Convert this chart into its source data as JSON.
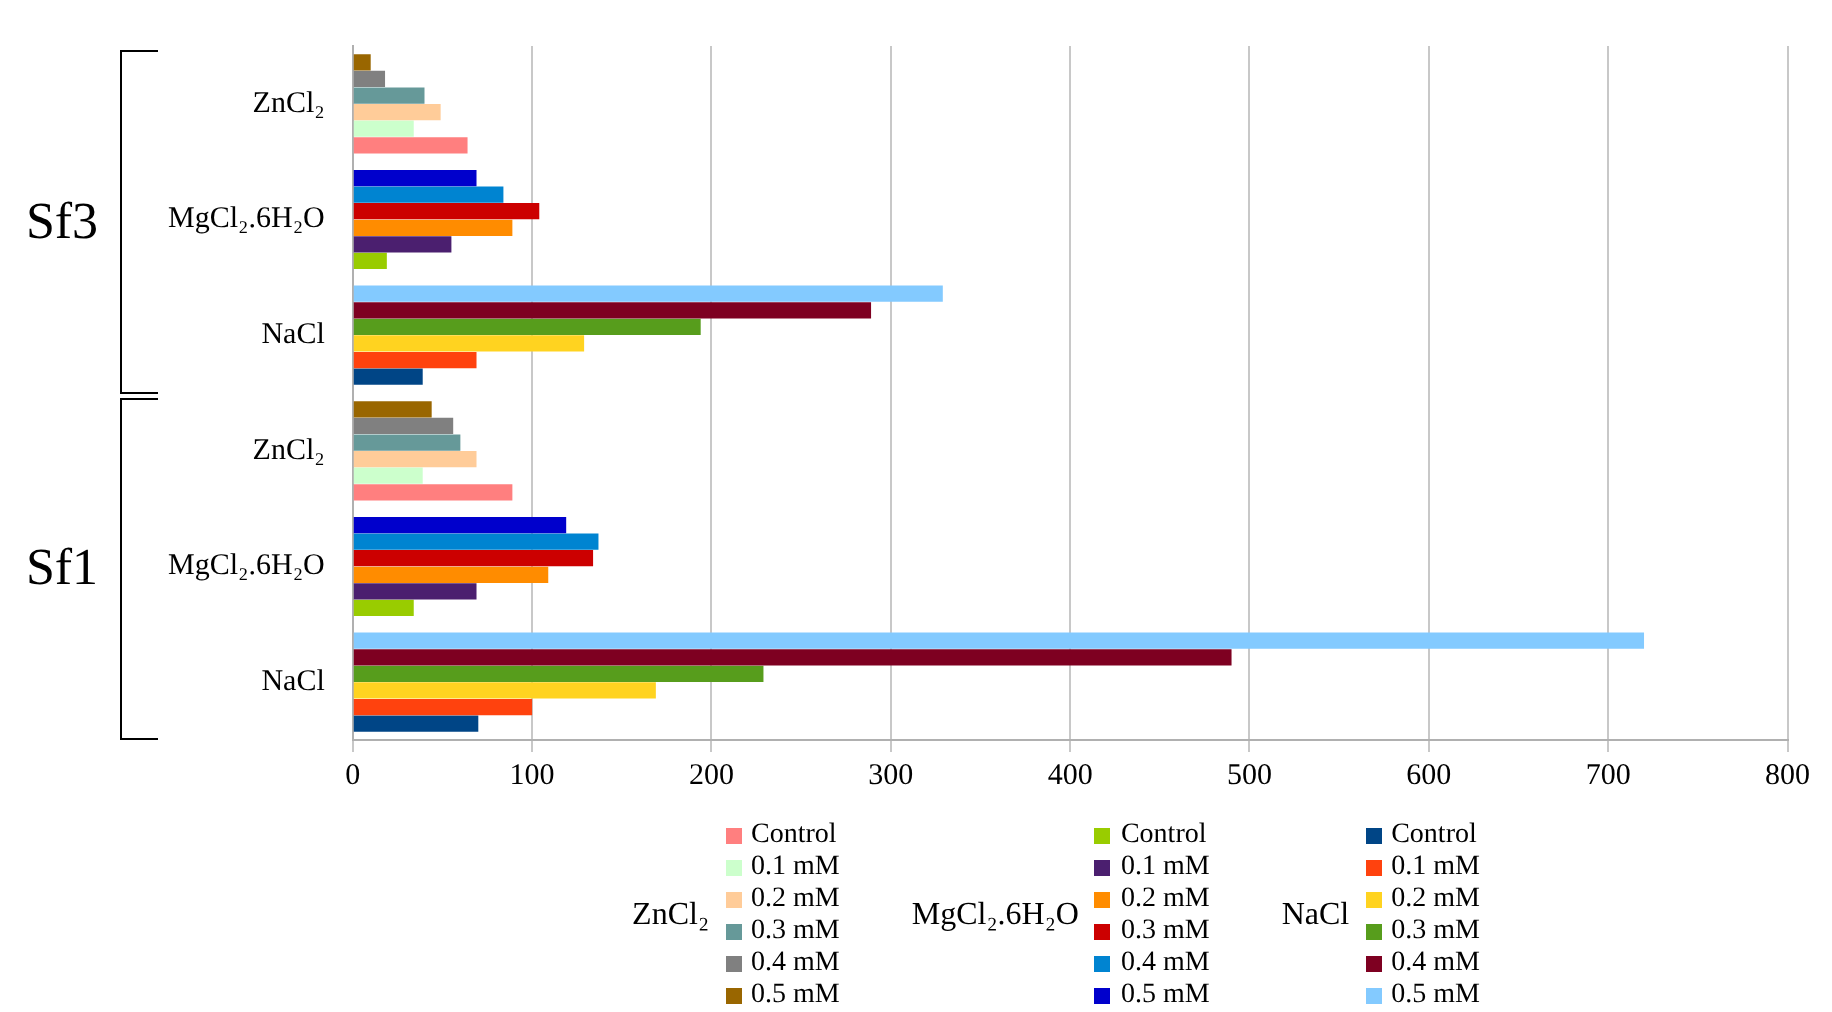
{
  "chart_data": {
    "type": "bar",
    "orientation": "horizontal",
    "categories": [
      "ZnCl₂",
      "MgCl₂.6H₂O",
      "NaCl",
      "ZnCl₂",
      "MgCl₂.6H₂O",
      "NaCl"
    ],
    "series": [
      {
        "name": "Control",
        "color": "#ff7f7f",
        "values": [
          64,
          null,
          null,
          89,
          null,
          null
        ]
      },
      {
        "name": "0.1 mM",
        "color": "#ccffcc",
        "values": [
          34,
          null,
          null,
          39,
          null,
          null
        ]
      },
      {
        "name": "0.2 mM",
        "color": "#ffcc99",
        "values": [
          49,
          null,
          null,
          69,
          null,
          null
        ]
      },
      {
        "name": "0.3 mM",
        "color": "#669999",
        "values": [
          40,
          null,
          null,
          60,
          null,
          null
        ]
      },
      {
        "name": "0.4 mM",
        "color": "#808080",
        "values": [
          18,
          null,
          null,
          56,
          null,
          null
        ]
      },
      {
        "name": "0.5 mM",
        "color": "#996600",
        "values": [
          10,
          null,
          null,
          44,
          null,
          null
        ]
      },
      {
        "name": "Control",
        "color": "#99cc00",
        "values": [
          null,
          19,
          null,
          null,
          34,
          null
        ]
      },
      {
        "name": "0.1 mM",
        "color": "#4b1f6f",
        "values": [
          null,
          55,
          null,
          null,
          69,
          null
        ]
      },
      {
        "name": "0.2 mM",
        "color": "#ff8c00",
        "values": [
          null,
          89,
          null,
          null,
          109,
          null
        ]
      },
      {
        "name": "0.3 mM",
        "color": "#cc0000",
        "values": [
          null,
          104,
          null,
          null,
          134,
          null
        ]
      },
      {
        "name": "0.4 mM",
        "color": "#0084d1",
        "values": [
          null,
          84,
          null,
          null,
          137,
          null
        ]
      },
      {
        "name": "0.5 mM",
        "color": "#0000cc",
        "values": [
          null,
          69,
          null,
          null,
          119,
          null
        ]
      },
      {
        "name": "Control",
        "color": "#004586",
        "values": [
          null,
          null,
          39,
          null,
          null,
          70
        ]
      },
      {
        "name": "0.1 mM",
        "color": "#ff420e",
        "values": [
          null,
          null,
          69,
          null,
          null,
          100
        ]
      },
      {
        "name": "0.2 mM",
        "color": "#ffd320",
        "values": [
          null,
          null,
          129,
          null,
          null,
          169
        ]
      },
      {
        "name": "0.3 mM",
        "color": "#579d1c",
        "values": [
          null,
          null,
          194,
          null,
          null,
          229
        ]
      },
      {
        "name": "0.4 mM",
        "color": "#7e0021",
        "values": [
          null,
          null,
          289,
          null,
          null,
          490
        ]
      },
      {
        "name": "0.5 mM",
        "color": "#83caff",
        "values": [
          null,
          null,
          329,
          null,
          null,
          720
        ]
      }
    ],
    "xlim": [
      0,
      800
    ],
    "xticks": [
      0,
      100,
      200,
      300,
      400,
      500,
      600,
      700,
      800
    ],
    "grid": "x",
    "legend": "bottom",
    "annotations": [
      "Sf3",
      "Sf1",
      "ZnCl₂",
      "MgCl₂.6H₂O",
      "NaCl"
    ]
  }
}
